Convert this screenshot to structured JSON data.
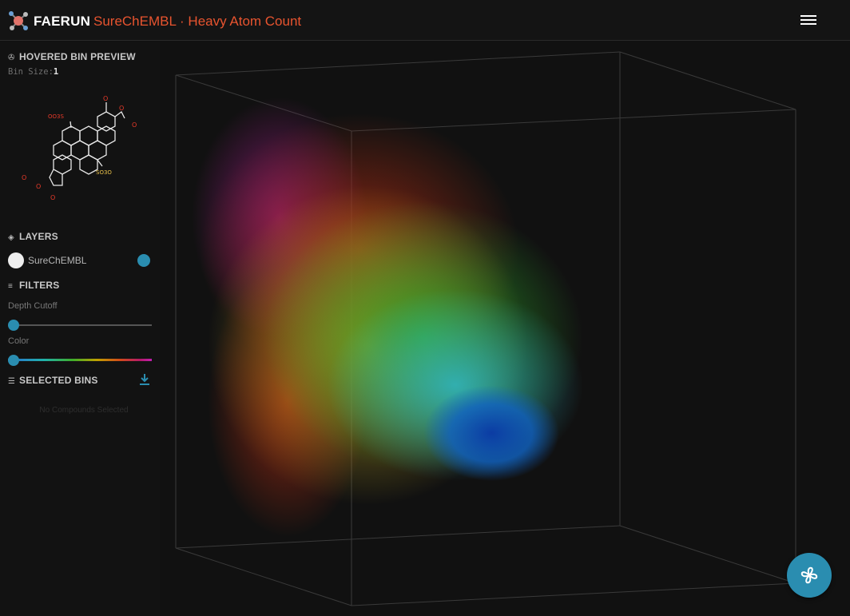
{
  "header": {
    "app_name": "FAERUN",
    "title": "SureChEMBL · Heavy Atom Count"
  },
  "sidebar": {
    "hovered": {
      "title": "HOVERED BIN PREVIEW",
      "bin_size_label": "Bin Size:",
      "bin_size_value": "1"
    },
    "layers": {
      "title": "LAYERS",
      "items": [
        {
          "label": "SureChEMBL",
          "color": "#2a8db0"
        }
      ]
    },
    "filters": {
      "title": "FILTERS",
      "depth_label": "Depth Cutoff",
      "color_label": "Color",
      "depth_value": 0,
      "color_value": 0
    },
    "selected": {
      "title": "SELECTED BINS",
      "empty_text": "No Compounds Selected"
    }
  },
  "molecule": {
    "labels": [
      "OO3S",
      "SO3O",
      "O",
      "O",
      "O",
      "O",
      "O",
      "O"
    ]
  },
  "colors": {
    "accent": "#2a8db0",
    "title": "#e8542f",
    "background": "#111111"
  },
  "icons": {
    "logo": "molecule-logo-icon",
    "menu": "hamburger-icon",
    "fab": "pinwheel-icon",
    "download": "download-icon"
  }
}
